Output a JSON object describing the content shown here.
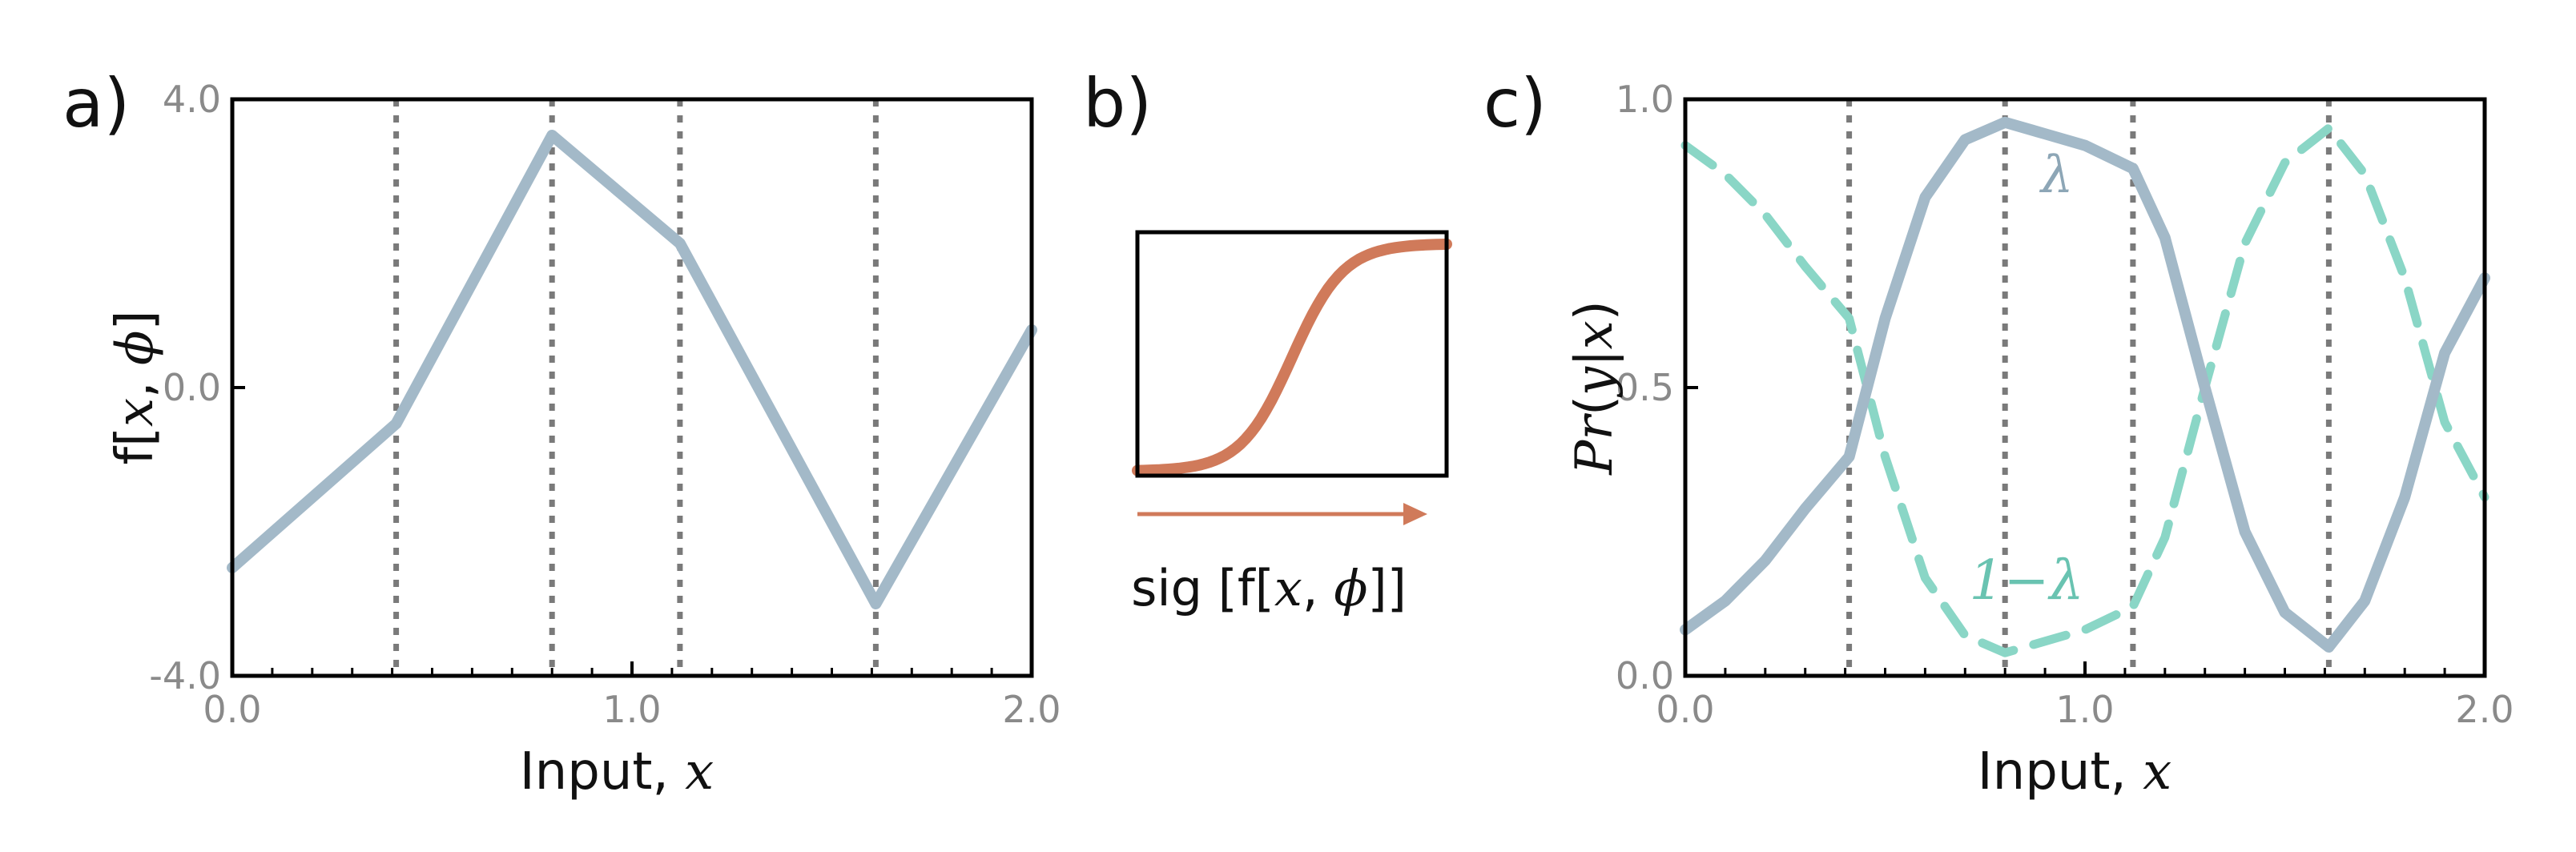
{
  "colors": {
    "main_curve": "#a3b9c8",
    "complement_curve": "#8ad6c6",
    "sigmoid": "#d07a5a",
    "sigmoid_label": "#d07a5a",
    "complement_label": "#69c3b1",
    "lambda_label": "#8da6b6",
    "vlines": "#7a7a7a"
  },
  "chart_data": [
    {
      "panel": "a)",
      "type": "line",
      "title": "",
      "xlabel": "Input, x",
      "ylabel": "f[x, ϕ]",
      "xlim": [
        0.0,
        2.0
      ],
      "ylim": [
        -4.0,
        4.0
      ],
      "x_ticks": [
        0.0,
        1.0,
        2.0
      ],
      "x_tick_labels": [
        "0.0",
        "1.0",
        "2.0"
      ],
      "y_ticks": [
        -4.0,
        0.0,
        4.0
      ],
      "y_tick_labels": [
        "-4.0",
        "0.0",
        "4.0"
      ],
      "vertical_dotted_lines": [
        0.41,
        0.8,
        1.12,
        1.61
      ],
      "series": [
        {
          "x": [
            0.0,
            0.41,
            0.8,
            1.12,
            1.61,
            2.0
          ],
          "y": [
            -2.5,
            -0.5,
            3.5,
            2.0,
            -3.0,
            0.8
          ]
        }
      ],
      "grid": false
    },
    {
      "panel": "b)",
      "type": "line",
      "title": "",
      "xlabel": "sig [f[x, ϕ]]",
      "x_range": [
        -6,
        6
      ],
      "y_range": [
        0,
        1
      ],
      "series": [
        {
          "function": "sigmoid",
          "x": [
            -6,
            -5,
            -4,
            -3,
            -2,
            -1,
            0,
            1,
            2,
            3,
            4,
            5,
            6
          ],
          "y": [
            0.0025,
            0.0067,
            0.018,
            0.047,
            0.119,
            0.269,
            0.5,
            0.731,
            0.881,
            0.953,
            0.982,
            0.9933,
            0.9975
          ]
        }
      ],
      "arrow": "right",
      "grid": false
    },
    {
      "panel": "c)",
      "type": "line",
      "title": "",
      "xlabel": "Input, x",
      "ylabel": "Pr(y|x)",
      "xlim": [
        0.0,
        2.0
      ],
      "ylim": [
        0.0,
        1.0
      ],
      "x_ticks": [
        0.0,
        1.0,
        2.0
      ],
      "x_tick_labels": [
        "0.0",
        "1.0",
        "2.0"
      ],
      "y_ticks": [
        0.0,
        0.5,
        1.0
      ],
      "y_tick_labels": [
        "0.0",
        "0.5",
        "1.0"
      ],
      "vertical_dotted_lines": [
        0.41,
        0.8,
        1.12,
        1.61
      ],
      "series": [
        {
          "name": "λ",
          "style": "solid",
          "x": [
            0.0,
            0.1,
            0.2,
            0.3,
            0.41,
            0.5,
            0.6,
            0.7,
            0.8,
            0.9,
            1.0,
            1.12,
            1.2,
            1.3,
            1.4,
            1.5,
            1.61,
            1.7,
            1.8,
            1.9,
            2.0
          ],
          "y": [
            0.08,
            0.13,
            0.2,
            0.29,
            0.38,
            0.62,
            0.83,
            0.93,
            0.96,
            0.94,
            0.92,
            0.88,
            0.76,
            0.5,
            0.25,
            0.11,
            0.05,
            0.13,
            0.31,
            0.56,
            0.69
          ]
        },
        {
          "name": "1−λ",
          "style": "dashed",
          "x": [
            0.0,
            0.1,
            0.2,
            0.3,
            0.41,
            0.5,
            0.6,
            0.7,
            0.8,
            0.9,
            1.0,
            1.12,
            1.2,
            1.3,
            1.4,
            1.5,
            1.61,
            1.7,
            1.8,
            1.9,
            2.0
          ],
          "y": [
            0.92,
            0.87,
            0.8,
            0.71,
            0.62,
            0.38,
            0.17,
            0.07,
            0.04,
            0.06,
            0.08,
            0.12,
            0.24,
            0.5,
            0.75,
            0.89,
            0.95,
            0.87,
            0.69,
            0.44,
            0.31
          ]
        }
      ],
      "annotations": [
        "λ",
        "1−λ"
      ],
      "grid": false
    }
  ]
}
